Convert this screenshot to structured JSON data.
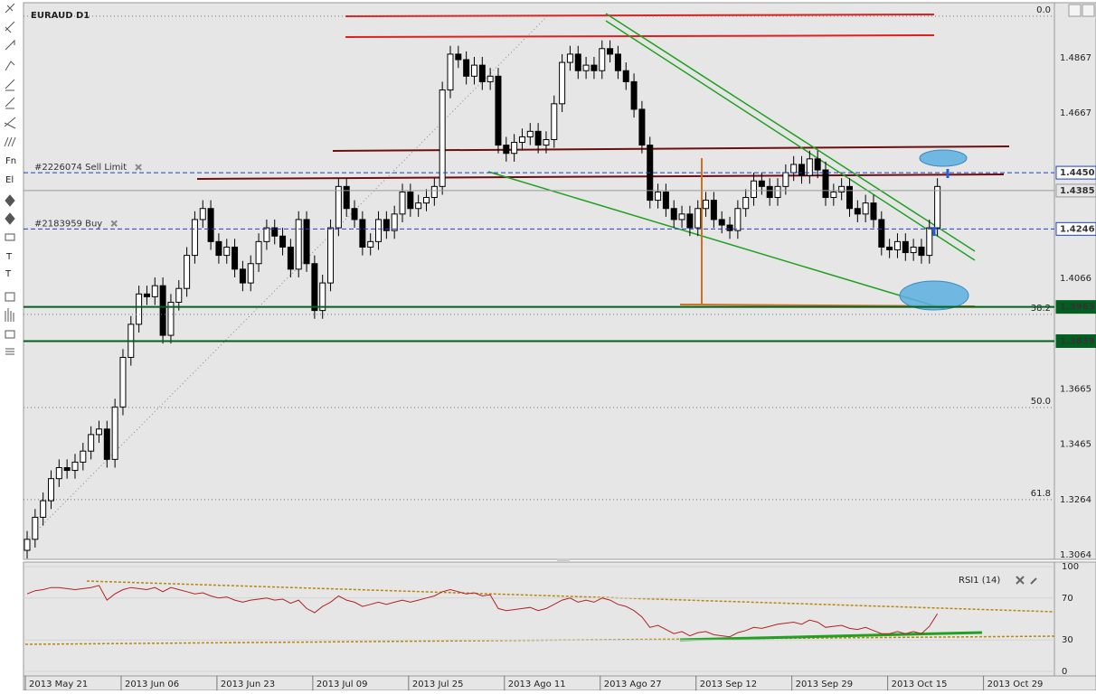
{
  "toolbar": [
    "Fn",
    "El",
    "T",
    "T"
  ],
  "chart_data": {
    "type": "candlestick",
    "title": "EURAUD D1",
    "x_labels": [
      "2013 May 21",
      "2013 Jun 06",
      "2013 Jun 23",
      "2013 Jul 09",
      "2013 Jul 25",
      "2013 Ago 11",
      "2013 Ago 27",
      "2013 Sep 12",
      "2013 Sep 29",
      "2013 Oct 15",
      "2013 Oct 29"
    ],
    "colors": {
      "up": "#ffffff",
      "down": "#000000"
    },
    "ylim": [
      1.3044,
      1.506
    ],
    "yticks": [
      1.3064,
      1.3264,
      1.3465,
      1.3665,
      1.4066,
      1.4667,
      1.4867
    ],
    "grid": true,
    "candles": [
      [
        1.308,
        1.315,
        1.305,
        1.312
      ],
      [
        1.312,
        1.323,
        1.309,
        1.32
      ],
      [
        1.32,
        1.329,
        1.317,
        1.326
      ],
      [
        1.326,
        1.337,
        1.323,
        1.334
      ],
      [
        1.334,
        1.341,
        1.331,
        1.338
      ],
      [
        1.338,
        1.341,
        1.334,
        1.337
      ],
      [
        1.337,
        1.343,
        1.334,
        1.34
      ],
      [
        1.34,
        1.347,
        1.337,
        1.344
      ],
      [
        1.344,
        1.353,
        1.341,
        1.35
      ],
      [
        1.35,
        1.355,
        1.347,
        1.352
      ],
      [
        1.352,
        1.355,
        1.338,
        1.341
      ],
      [
        1.341,
        1.363,
        1.338,
        1.36
      ],
      [
        1.36,
        1.381,
        1.357,
        1.378
      ],
      [
        1.378,
        1.393,
        1.375,
        1.39
      ],
      [
        1.39,
        1.404,
        1.387,
        1.401
      ],
      [
        1.401,
        1.404,
        1.397,
        1.4
      ],
      [
        1.4,
        1.407,
        1.397,
        1.404
      ],
      [
        1.404,
        1.407,
        1.383,
        1.386
      ],
      [
        1.386,
        1.401,
        1.383,
        1.398
      ],
      [
        1.398,
        1.406,
        1.395,
        1.403
      ],
      [
        1.403,
        1.418,
        1.4,
        1.415
      ],
      [
        1.415,
        1.431,
        1.412,
        1.428
      ],
      [
        1.428,
        1.435,
        1.425,
        1.432
      ],
      [
        1.432,
        1.435,
        1.417,
        1.42
      ],
      [
        1.42,
        1.423,
        1.412,
        1.415
      ],
      [
        1.415,
        1.421,
        1.412,
        1.418
      ],
      [
        1.418,
        1.421,
        1.407,
        1.41
      ],
      [
        1.41,
        1.413,
        1.402,
        1.405
      ],
      [
        1.405,
        1.415,
        1.402,
        1.412
      ],
      [
        1.412,
        1.423,
        1.409,
        1.42
      ],
      [
        1.42,
        1.428,
        1.417,
        1.425
      ],
      [
        1.425,
        1.428,
        1.419,
        1.422
      ],
      [
        1.422,
        1.425,
        1.415,
        1.418
      ],
      [
        1.418,
        1.421,
        1.407,
        1.41
      ],
      [
        1.41,
        1.431,
        1.407,
        1.428
      ],
      [
        1.428,
        1.431,
        1.409,
        1.412
      ],
      [
        1.412,
        1.415,
        1.392,
        1.395
      ],
      [
        1.395,
        1.408,
        1.392,
        1.405
      ],
      [
        1.405,
        1.428,
        1.402,
        1.425
      ],
      [
        1.425,
        1.443,
        1.422,
        1.44
      ],
      [
        1.44,
        1.443,
        1.429,
        1.432
      ],
      [
        1.432,
        1.435,
        1.425,
        1.428
      ],
      [
        1.428,
        1.431,
        1.415,
        1.418
      ],
      [
        1.418,
        1.423,
        1.415,
        1.42
      ],
      [
        1.42,
        1.431,
        1.417,
        1.428
      ],
      [
        1.428,
        1.431,
        1.421,
        1.424
      ],
      [
        1.424,
        1.433,
        1.421,
        1.43
      ],
      [
        1.43,
        1.441,
        1.427,
        1.438
      ],
      [
        1.438,
        1.441,
        1.429,
        1.432
      ],
      [
        1.432,
        1.437,
        1.429,
        1.434
      ],
      [
        1.434,
        1.439,
        1.431,
        1.436
      ],
      [
        1.436,
        1.443,
        1.433,
        1.44
      ],
      [
        1.44,
        1.478,
        1.437,
        1.475
      ],
      [
        1.475,
        1.491,
        1.472,
        1.488
      ],
      [
        1.488,
        1.491,
        1.483,
        1.486
      ],
      [
        1.486,
        1.489,
        1.477,
        1.48
      ],
      [
        1.48,
        1.487,
        1.477,
        1.484
      ],
      [
        1.484,
        1.487,
        1.475,
        1.478
      ],
      [
        1.478,
        1.483,
        1.475,
        1.48
      ],
      [
        1.48,
        1.483,
        1.452,
        1.455
      ],
      [
        1.455,
        1.458,
        1.449,
        1.452
      ],
      [
        1.452,
        1.459,
        1.449,
        1.456
      ],
      [
        1.456,
        1.461,
        1.453,
        1.458
      ],
      [
        1.458,
        1.463,
        1.455,
        1.46
      ],
      [
        1.46,
        1.463,
        1.452,
        1.455
      ],
      [
        1.455,
        1.46,
        1.452,
        1.457
      ],
      [
        1.457,
        1.473,
        1.454,
        1.47
      ],
      [
        1.47,
        1.488,
        1.467,
        1.485
      ],
      [
        1.485,
        1.491,
        1.482,
        1.488
      ],
      [
        1.488,
        1.491,
        1.479,
        1.482
      ],
      [
        1.482,
        1.487,
        1.479,
        1.484
      ],
      [
        1.484,
        1.487,
        1.479,
        1.482
      ],
      [
        1.482,
        1.493,
        1.479,
        1.49
      ],
      [
        1.49,
        1.493,
        1.485,
        1.488
      ],
      [
        1.488,
        1.491,
        1.479,
        1.482
      ],
      [
        1.482,
        1.485,
        1.475,
        1.478
      ],
      [
        1.478,
        1.481,
        1.465,
        1.468
      ],
      [
        1.468,
        1.471,
        1.452,
        1.455
      ],
      [
        1.455,
        1.458,
        1.432,
        1.435
      ],
      [
        1.435,
        1.441,
        1.432,
        1.438
      ],
      [
        1.438,
        1.441,
        1.429,
        1.432
      ],
      [
        1.432,
        1.435,
        1.425,
        1.428
      ],
      [
        1.428,
        1.433,
        1.425,
        1.43
      ],
      [
        1.43,
        1.433,
        1.422,
        1.425
      ],
      [
        1.425,
        1.435,
        1.422,
        1.432
      ],
      [
        1.432,
        1.438,
        1.429,
        1.435
      ],
      [
        1.435,
        1.438,
        1.425,
        1.428
      ],
      [
        1.428,
        1.431,
        1.423,
        1.426
      ],
      [
        1.426,
        1.429,
        1.421,
        1.424
      ],
      [
        1.424,
        1.435,
        1.421,
        1.432
      ],
      [
        1.432,
        1.439,
        1.429,
        1.436
      ],
      [
        1.436,
        1.445,
        1.433,
        1.442
      ],
      [
        1.442,
        1.445,
        1.437,
        1.44
      ],
      [
        1.44,
        1.443,
        1.433,
        1.436
      ],
      [
        1.436,
        1.443,
        1.433,
        1.44
      ],
      [
        1.44,
        1.448,
        1.437,
        1.445
      ],
      [
        1.445,
        1.451,
        1.442,
        1.448
      ],
      [
        1.448,
        1.451,
        1.441,
        1.444
      ],
      [
        1.444,
        1.453,
        1.441,
        1.45
      ],
      [
        1.45,
        1.453,
        1.443,
        1.446
      ],
      [
        1.446,
        1.449,
        1.433,
        1.436
      ],
      [
        1.436,
        1.441,
        1.433,
        1.438
      ],
      [
        1.438,
        1.443,
        1.435,
        1.44
      ],
      [
        1.44,
        1.443,
        1.429,
        1.432
      ],
      [
        1.432,
        1.435,
        1.427,
        1.43
      ],
      [
        1.43,
        1.437,
        1.427,
        1.434
      ],
      [
        1.434,
        1.437,
        1.425,
        1.428
      ],
      [
        1.428,
        1.431,
        1.415,
        1.418
      ],
      [
        1.418,
        1.421,
        1.414,
        1.417
      ],
      [
        1.417,
        1.423,
        1.414,
        1.42
      ],
      [
        1.42,
        1.423,
        1.413,
        1.416
      ],
      [
        1.416,
        1.421,
        1.413,
        1.418
      ],
      [
        1.418,
        1.421,
        1.412,
        1.415
      ],
      [
        1.415,
        1.428,
        1.412,
        1.425
      ],
      [
        1.425,
        1.443,
        1.422,
        1.44
      ]
    ],
    "fib_levels": [
      {
        "value": 0,
        "label": "0.0",
        "price": 1.5018
      },
      {
        "value": 38.2,
        "label": "38.2",
        "price": 1.3936
      },
      {
        "value": 50,
        "label": "50.0",
        "price": 1.3598
      },
      {
        "value": 61.8,
        "label": "61.8",
        "price": 1.3264
      }
    ],
    "orders": [
      {
        "label": "#2226074 Sell Limit",
        "price": 1.445,
        "price_label": "1.4450"
      },
      {
        "label": "#2183959 Buy",
        "price": 1.4246,
        "price_label": "1.4246"
      }
    ],
    "levels": [
      {
        "price": 1.3963,
        "label": "1.3963"
      },
      {
        "price": 1.3839,
        "label": "1.3839"
      }
    ],
    "current_price": {
      "value": 1.4385,
      "label": "1.4385"
    },
    "rsi": {
      "label": "RSI1 (14)",
      "ylim": [
        0,
        100
      ],
      "yticks": [
        0,
        30,
        70,
        100
      ],
      "color": "#b22222",
      "values": [
        74,
        77,
        78,
        80,
        80,
        79,
        78,
        79,
        80,
        82,
        68,
        74,
        78,
        80,
        79,
        78,
        80,
        76,
        80,
        78,
        76,
        74,
        75,
        72,
        70,
        71,
        68,
        66,
        68,
        69,
        70,
        68,
        69,
        65,
        68,
        60,
        56,
        62,
        66,
        72,
        68,
        66,
        62,
        64,
        66,
        64,
        66,
        68,
        66,
        68,
        70,
        72,
        76,
        78,
        76,
        74,
        75,
        72,
        73,
        60,
        58,
        59,
        60,
        61,
        58,
        60,
        64,
        68,
        70,
        66,
        68,
        66,
        70,
        68,
        64,
        62,
        58,
        52,
        42,
        44,
        40,
        36,
        38,
        34,
        37,
        38,
        35,
        34,
        33,
        37,
        39,
        42,
        41,
        43,
        45,
        46,
        47,
        45,
        49,
        47,
        42,
        43,
        44,
        41,
        40,
        42,
        39,
        36,
        36,
        38,
        36,
        38,
        36,
        43,
        55
      ]
    }
  }
}
